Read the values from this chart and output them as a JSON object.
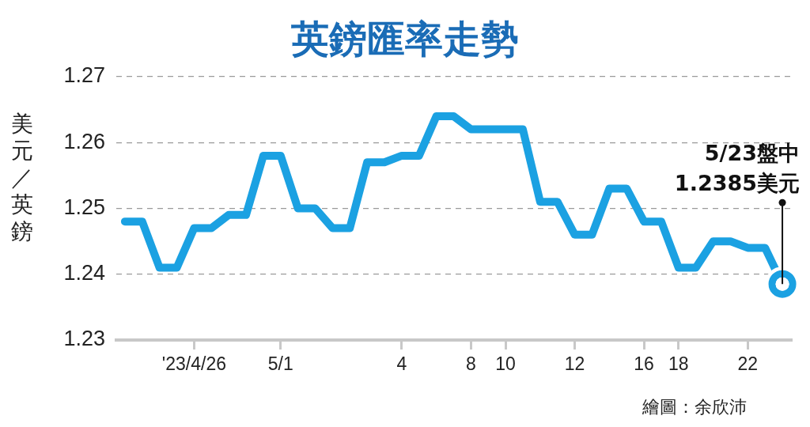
{
  "chart_data": {
    "type": "line",
    "title": "英鎊匯率走勢",
    "ylabel": "美元／英鎊",
    "categories": [
      null,
      null,
      null,
      null,
      "'23/4/26",
      null,
      null,
      null,
      null,
      "5/1",
      null,
      null,
      null,
      null,
      null,
      null,
      "4",
      null,
      null,
      null,
      "8",
      null,
      "10",
      null,
      null,
      null,
      "12",
      null,
      null,
      null,
      "16",
      null,
      "18",
      null,
      null,
      null,
      "22",
      null,
      null
    ],
    "ylim": [
      1.23,
      1.27
    ],
    "yticks": [
      1.23,
      1.24,
      1.25,
      1.26,
      1.27
    ],
    "grid": "y",
    "marker": "none",
    "series": [
      {
        "color": "#1ba1e2",
        "values": [
          1.248,
          1.248,
          1.241,
          1.241,
          1.247,
          1.247,
          1.249,
          1.249,
          1.258,
          1.258,
          1.25,
          1.25,
          1.247,
          1.247,
          1.257,
          1.257,
          1.258,
          1.258,
          1.264,
          1.264,
          1.262,
          1.262,
          1.262,
          1.262,
          1.251,
          1.251,
          1.246,
          1.246,
          1.253,
          1.253,
          1.248,
          1.248,
          1.241,
          1.241,
          1.245,
          1.245,
          1.244,
          1.244,
          1.2385
        ]
      }
    ],
    "annotations": [
      "5/23盤中\n1.2385美元",
      "繪圖：余欣沛"
    ]
  }
}
